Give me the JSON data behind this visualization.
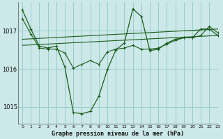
{
  "title": "Graphe pression niveau de la mer (hPa)",
  "bg_color": "#cce8e8",
  "grid_color": "#99cccc",
  "line_color": "#1a5c1a",
  "xlim": [
    -0.5,
    23
  ],
  "ylim": [
    1014.55,
    1017.75
  ],
  "yticks": [
    1015,
    1016,
    1017
  ],
  "xtick_labels": [
    "0",
    "1",
    "2",
    "3",
    "4",
    "5",
    "6",
    "7",
    "8",
    "9",
    "10",
    "11",
    "12",
    "13",
    "14",
    "15",
    "16",
    "17",
    "18",
    "19",
    "20",
    "21",
    "22",
    "23"
  ],
  "series1": [
    1017.55,
    1017.05,
    1016.6,
    1016.55,
    1016.6,
    1016.05,
    1014.85,
    1014.82,
    1014.88,
    1015.28,
    1015.98,
    1016.5,
    1016.68,
    1017.58,
    1017.38,
    1016.48,
    1016.52,
    1016.68,
    1016.78,
    1016.82,
    1016.82,
    1017.05,
    1017.05,
    1016.88
  ],
  "series2_x": [
    0,
    23
  ],
  "series2_y": [
    1016.78,
    1017.05
  ],
  "series3": [
    1017.32,
    1016.92,
    1016.55,
    1016.52,
    1016.52,
    1016.42,
    1016.02,
    1016.12,
    1016.22,
    1016.12,
    1016.45,
    1016.52,
    1016.55,
    1016.62,
    1016.52,
    1016.52,
    1016.55,
    1016.65,
    1016.75,
    1016.82,
    1016.82,
    1016.88,
    1017.12,
    1016.95
  ],
  "series4_x": [
    0,
    23
  ],
  "series4_y": [
    1016.62,
    1016.88
  ]
}
